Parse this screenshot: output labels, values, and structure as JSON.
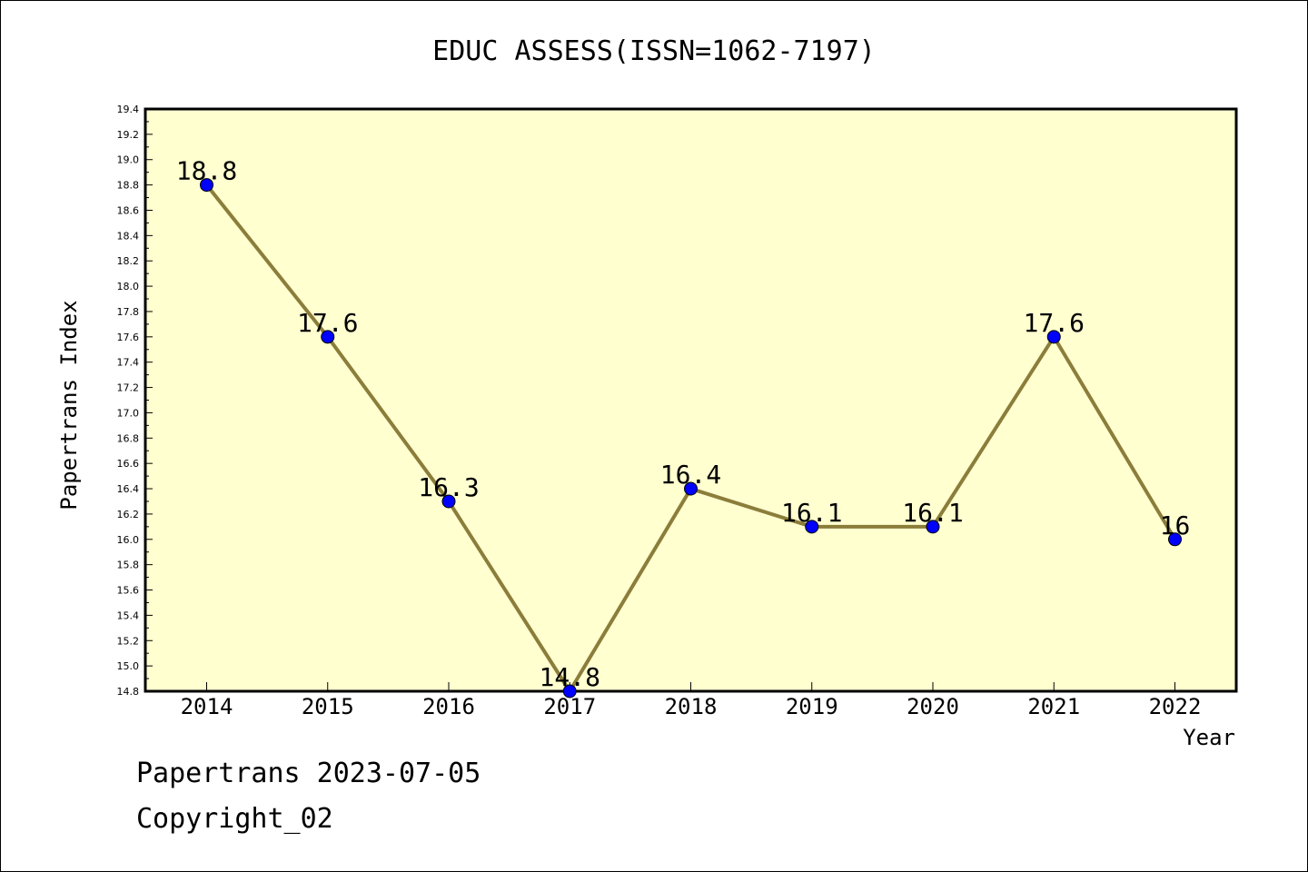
{
  "chart_data": {
    "type": "line",
    "title": "EDUC ASSESS(ISSN=1062-7197)",
    "xlabel": "Year",
    "ylabel": "Papertrans Index",
    "categories": [
      "2014",
      "2015",
      "2016",
      "2017",
      "2018",
      "2019",
      "2020",
      "2021",
      "2022"
    ],
    "values": [
      18.8,
      17.6,
      16.3,
      14.8,
      16.4,
      16.1,
      16.1,
      17.6,
      16
    ],
    "data_labels": [
      "18.8",
      "17.6",
      "16.3",
      "14.8",
      "16.4",
      "16.1",
      "16.1",
      "17.6",
      "16"
    ],
    "ylim": [
      14.8,
      19.4
    ],
    "y_ticks": [
      "14.8",
      "15.0",
      "15.2",
      "15.4",
      "15.6",
      "15.8",
      "16.0",
      "16.2",
      "16.4",
      "16.6",
      "16.8",
      "17.0",
      "17.2",
      "17.4",
      "17.6",
      "17.8",
      "18.0",
      "18.2",
      "18.4",
      "18.6",
      "18.8",
      "19.0",
      "19.2",
      "19.4"
    ],
    "grid": false,
    "colors": {
      "plot_background": "#ffffd0",
      "line": "#8b7d3a",
      "marker": "#0000ff"
    }
  },
  "footer": {
    "line1": "Papertrans 2023-07-05",
    "line2": "Copyright_02"
  }
}
